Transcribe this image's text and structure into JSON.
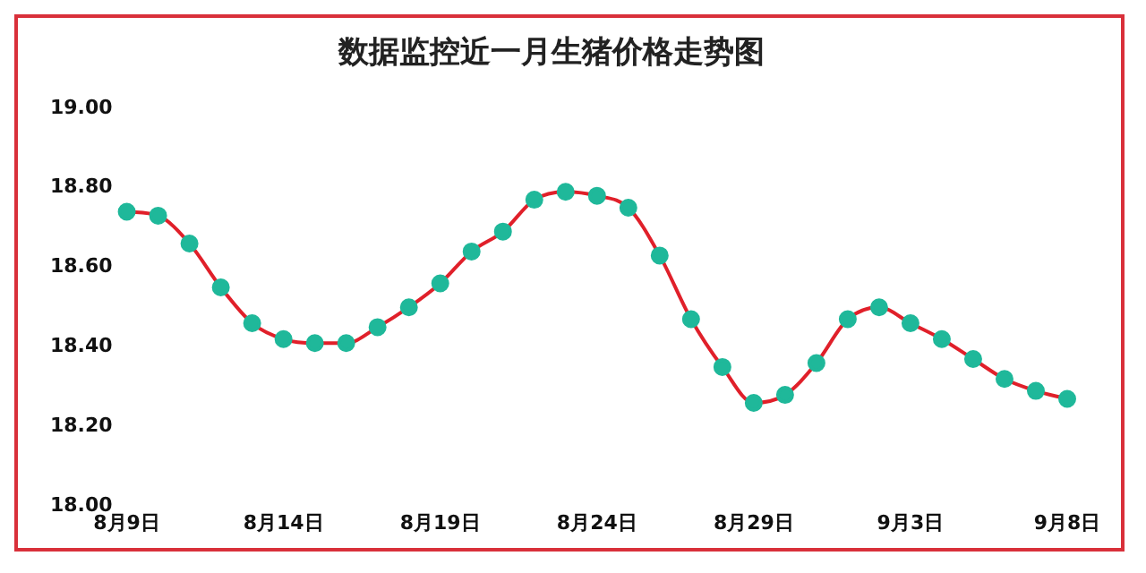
{
  "chart_data": {
    "type": "line",
    "title": "数据监控近一月生猪价格走势图",
    "categories": [
      "8月9日",
      null,
      null,
      null,
      null,
      "8月14日",
      null,
      null,
      null,
      null,
      "8月19日",
      null,
      null,
      null,
      null,
      "8月24日",
      null,
      null,
      null,
      null,
      "8月29日",
      null,
      null,
      null,
      null,
      "9月3日",
      null,
      null,
      null,
      null,
      "9月8日"
    ],
    "series": [
      {
        "color": "#e0202a",
        "values": [
          18.74,
          18.73,
          18.66,
          18.55,
          18.46,
          18.42,
          18.41,
          18.41,
          18.45,
          18.5,
          18.56,
          18.64,
          18.69,
          18.77,
          18.79,
          18.78,
          18.75,
          18.63,
          18.47,
          18.35,
          18.26,
          18.28,
          18.36,
          18.47,
          18.5,
          18.46,
          18.42,
          18.37,
          18.32,
          18.29,
          18.27
        ]
      }
    ],
    "marker": "circle",
    "ylim": [
      18,
      19
    ],
    "yticks": [
      {
        "value": 18,
        "label": "18.00"
      },
      {
        "value": 18.2,
        "label": "18.20"
      },
      {
        "value": 18.4,
        "label": "18.40"
      },
      {
        "value": 18.6,
        "label": "18.60"
      },
      {
        "value": 18.8,
        "label": "18.80"
      },
      {
        "value": 19,
        "label": "19.00"
      }
    ],
    "grid": false,
    "legend": false
  }
}
